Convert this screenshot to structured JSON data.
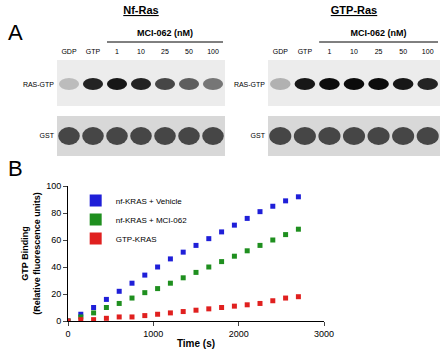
{
  "panel_a": {
    "label": "A",
    "treatment": "MCI-062 (nM)",
    "lanes": [
      "GDP",
      "GTP",
      "1",
      "10",
      "25",
      "50",
      "100"
    ],
    "rows": [
      "RAS-GTP",
      "GST"
    ],
    "blots": [
      {
        "title": "Nf-Ras",
        "ras_gtp_intensity": [
          0.2,
          0.85,
          0.9,
          0.85,
          0.7,
          0.6,
          0.5
        ]
      },
      {
        "title": "GTP-Ras",
        "ras_gtp_intensity": [
          0.25,
          0.9,
          0.95,
          0.95,
          0.95,
          0.9,
          0.85
        ]
      }
    ]
  },
  "chart_data": {
    "type": "scatter",
    "panel_label": "B",
    "x_label": "Time (s)",
    "y_label": [
      "GTP Binding",
      "(Relative fluorescence units)"
    ],
    "x": [
      0,
      150,
      300,
      450,
      600,
      750,
      900,
      1050,
      1200,
      1350,
      1500,
      1650,
      1800,
      1950,
      2100,
      2250,
      2400,
      2550,
      2700
    ],
    "series": [
      {
        "name": "nf-KRAS + Vehicle",
        "color": "#1f1fd8",
        "marker": "square",
        "values": [
          0,
          5,
          10,
          16,
          22,
          28,
          34,
          40,
          46,
          51,
          56,
          61,
          66,
          71,
          76,
          81,
          85,
          89,
          92
        ]
      },
      {
        "name": "nf-KRAS + MCI-062",
        "color": "#1f8f1f",
        "marker": "square",
        "values": [
          0,
          3,
          6,
          10,
          13,
          17,
          21,
          24,
          28,
          32,
          36,
          40,
          44,
          48,
          52,
          56,
          60,
          64,
          68
        ]
      },
      {
        "name": "GTP-KRAS",
        "color": "#e0201f",
        "marker": "square",
        "values": [
          0,
          1,
          1,
          2,
          3,
          3,
          4,
          5,
          6,
          7,
          8,
          9,
          10,
          11,
          12,
          13,
          15,
          17,
          18
        ]
      }
    ],
    "xlim": [
      0,
      3000
    ],
    "xticks": [
      0,
      1000,
      2000,
      3000
    ],
    "ylim": [
      0,
      100
    ],
    "yticks": [
      0,
      20,
      40,
      60,
      80,
      100
    ],
    "grid": false,
    "legend": "upper left"
  }
}
